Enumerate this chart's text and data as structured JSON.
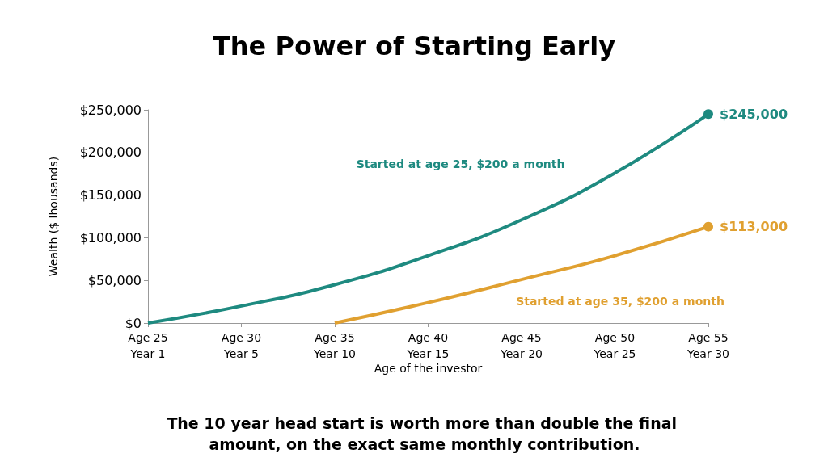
{
  "chart_data": {
    "type": "line",
    "title": "The Power of Starting Early",
    "xlabel": "Age of the investor",
    "ylabel": "Wealth ($ lhousands)",
    "categories": [
      "Age 25\nYear 1",
      "Age 30\nYear 5",
      "Age 35\nYear 10",
      "Age 40\nYear 15",
      "Age 45\nYear 20",
      "Age 50\nYear 25",
      "Age 55\nYear 30"
    ],
    "series": [
      {
        "name": "Started at age 25, $200 a month",
        "color": "#1e8a80",
        "values": [
          0,
          20000,
          45000,
          79000,
          121000,
          176000,
          245000
        ],
        "value_labels": [
          null,
          null,
          null,
          null,
          null,
          null,
          "$245,000"
        ]
      },
      {
        "name": "Started at age 35, $200 a month",
        "color": "#e0a030",
        "values": [
          null,
          null,
          0,
          24000,
          51000,
          79000,
          113000
        ],
        "value_labels": [
          null,
          null,
          null,
          null,
          null,
          null,
          "$113,000"
        ]
      }
    ],
    "ylim": [
      0,
      250000
    ],
    "yticks": [
      {
        "value": 0,
        "label": "$0"
      },
      {
        "value": 50000,
        "label": "$50,000"
      },
      {
        "value": 100000,
        "label": "$100,000"
      },
      {
        "value": 150000,
        "label": "$150,000"
      },
      {
        "value": 200000,
        "label": "$200,000"
      },
      {
        "value": 250000,
        "label": "$250,000"
      }
    ],
    "grid": false,
    "legend": false,
    "line_style": "solid",
    "annotations": [
      "The 10 year head start is worth more than double the final amount, on the exact same monthly contribution."
    ]
  }
}
